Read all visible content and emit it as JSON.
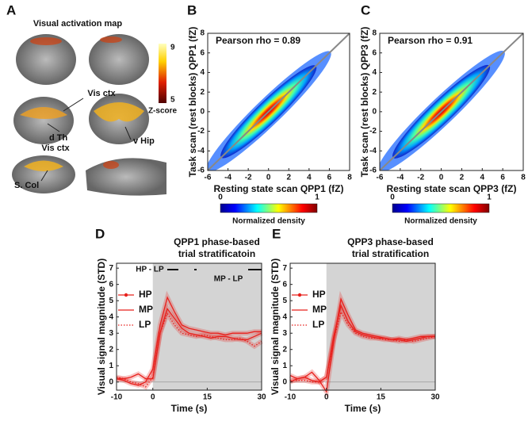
{
  "panel_labels": [
    "A",
    "B",
    "C",
    "D",
    "E"
  ],
  "panel_a": {
    "title": "Visual activation map",
    "labels": [
      "Vis ctx",
      "d Th",
      "v Hip",
      "Vis ctx",
      "S. Col"
    ],
    "colorbar": {
      "label": "Z-score",
      "ticks": [
        9,
        5
      ]
    }
  },
  "chart_data": [
    {
      "type": "density",
      "annotation": "Pearson rho = 0.89",
      "xlabel": "Resting state scan QPP1 (fZ)",
      "ylabel": "Task scan (rest blocks) QPP1 (fZ)",
      "xlim": [
        -6,
        8
      ],
      "ylim": [
        -6,
        8
      ],
      "xticks": [
        -6,
        -4,
        -2,
        0,
        2,
        4,
        6,
        8
      ],
      "yticks": [
        -6,
        -4,
        -2,
        0,
        2,
        4,
        6,
        8
      ],
      "colorbar": {
        "label": "Normalized density",
        "ticks": [
          0,
          1
        ]
      }
    },
    {
      "type": "density",
      "annotation": "Pearson rho = 0.91",
      "xlabel": "Resting state scan QPP3 (fZ)",
      "ylabel": "Task scan (rest blocks) QPP3 (fZ)",
      "xlim": [
        -6,
        8
      ],
      "ylim": [
        -6,
        8
      ],
      "xticks": [
        -6,
        -4,
        -2,
        0,
        2,
        4,
        6,
        8
      ],
      "yticks": [
        -6,
        -4,
        -2,
        0,
        2,
        4,
        6,
        8
      ],
      "colorbar": {
        "label": "Normalized density",
        "ticks": [
          0,
          1
        ]
      }
    },
    {
      "type": "line",
      "title": [
        "QPP1 phase-based",
        "trial stratificatoin"
      ],
      "xlabel": "Time (s)",
      "ylabel": "Visual signal magnitude (STD)",
      "annotations": [
        "HP - LP",
        "MP - LP"
      ],
      "stimulus": [
        0,
        30
      ],
      "x": [
        -10,
        -8,
        -6,
        -4,
        -2,
        0,
        2,
        4,
        6,
        8,
        10,
        12,
        14,
        16,
        18,
        20,
        22,
        24,
        26,
        28,
        30
      ],
      "xlim": [
        -10,
        30
      ],
      "xticks": [
        -10,
        0,
        15,
        30
      ],
      "ylim": [
        -0.5,
        7.3
      ],
      "yticks": [
        0,
        1,
        2,
        3,
        4,
        5,
        6,
        7
      ],
      "series": [
        {
          "name": "HP",
          "color": "#e8201c",
          "line_style": "solid-marker",
          "values": [
            0.2,
            0.1,
            -0.1,
            -0.2,
            0,
            0.8,
            3.5,
            5.2,
            4.3,
            3.5,
            3.3,
            3.2,
            3.1,
            3.0,
            3.0,
            2.9,
            3.0,
            3.0,
            3.0,
            3.1,
            3.1
          ]
        },
        {
          "name": "MP",
          "color": "#e8201c",
          "line_style": "solid",
          "values": [
            0.2,
            0.2,
            0.3,
            0.5,
            0.2,
            0.2,
            3.0,
            4.5,
            3.9,
            3.3,
            3.0,
            2.9,
            2.8,
            2.7,
            2.8,
            2.8,
            2.7,
            2.6,
            2.6,
            2.8,
            3.0
          ]
        },
        {
          "name": "LP",
          "color": "#e8201c",
          "line_style": "dotted",
          "values": [
            0.3,
            0.2,
            0.0,
            -0.1,
            -0.3,
            0.3,
            3.0,
            4.2,
            3.5,
            3.0,
            2.9,
            2.8,
            2.9,
            2.8,
            2.7,
            2.6,
            2.6,
            2.7,
            2.5,
            2.2,
            2.5
          ]
        }
      ]
    },
    {
      "type": "line",
      "title": [
        "QPP3 phase-based",
        "trial stratification"
      ],
      "xlabel": "Time (s)",
      "ylabel": "Visual signal magnitude (STD)",
      "stimulus": [
        0,
        30
      ],
      "x": [
        -10,
        -8,
        -6,
        -4,
        -2,
        0,
        2,
        4,
        6,
        8,
        10,
        12,
        14,
        16,
        18,
        20,
        22,
        24,
        26,
        28,
        30
      ],
      "xlim": [
        -10,
        30
      ],
      "xticks": [
        -10,
        0,
        15,
        30
      ],
      "ylim": [
        -0.5,
        7.3
      ],
      "yticks": [
        0,
        1,
        2,
        3,
        4,
        5,
        6,
        7
      ],
      "series": [
        {
          "name": "HP",
          "color": "#e8201c",
          "line_style": "solid-marker",
          "values": [
            0.4,
            0.2,
            0.3,
            0.6,
            0.1,
            -0.6,
            2.5,
            5.1,
            4.1,
            3.2,
            3.0,
            2.9,
            2.8,
            2.7,
            2.6,
            2.7,
            2.6,
            2.7,
            2.8,
            2.8,
            2.8
          ]
        },
        {
          "name": "MP",
          "color": "#e8201c",
          "line_style": "solid",
          "values": [
            0.0,
            0.2,
            0.3,
            0.1,
            0.0,
            0.3,
            2.8,
            4.7,
            3.7,
            3.1,
            2.9,
            2.8,
            2.7,
            2.7,
            2.6,
            2.6,
            2.5,
            2.6,
            2.7,
            2.8,
            2.8
          ]
        },
        {
          "name": "LP",
          "color": "#e8201c",
          "line_style": "dotted",
          "values": [
            0.1,
            0.1,
            0.1,
            0.0,
            0.0,
            0.3,
            2.6,
            4.3,
            3.5,
            3.0,
            2.8,
            2.7,
            2.7,
            2.6,
            2.6,
            2.5,
            2.6,
            2.5,
            2.6,
            2.7,
            2.8
          ]
        }
      ]
    }
  ]
}
